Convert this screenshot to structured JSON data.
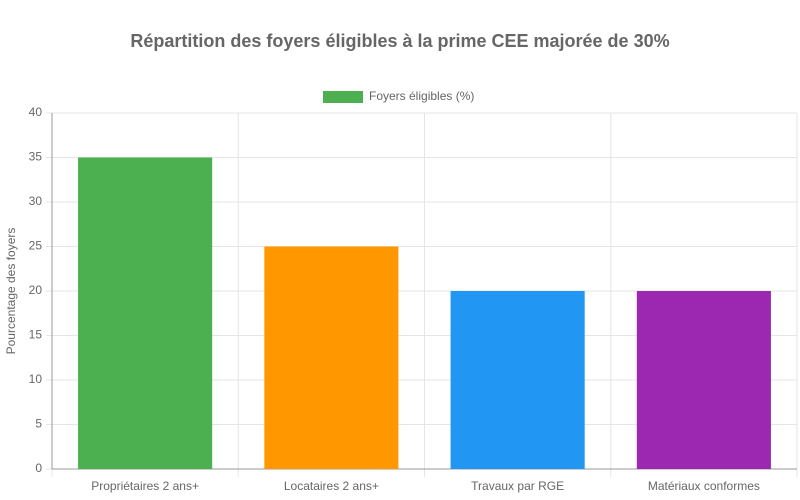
{
  "chart_data": {
    "type": "bar",
    "title": "Répartition des foyers éligibles à la prime CEE majorée de 30%",
    "y_label": "Pourcentage des foyers",
    "categories": [
      "Propriétaires 2 ans+",
      "Locataires 2 ans+",
      "Travaux par RGE",
      "Matériaux conformes"
    ],
    "series": [
      {
        "name": "Foyers éligibles (%)",
        "color": "#4caf50",
        "colors": [
          "#4caf50",
          "#ff9800",
          "#2196f3",
          "#9c27b0"
        ],
        "values": [
          35,
          25,
          20,
          20
        ]
      }
    ],
    "ylim": [
      0,
      40
    ],
    "yticks": [
      0,
      5,
      10,
      15,
      20,
      25,
      30,
      35,
      40
    ],
    "grid": true,
    "legend": "top"
  }
}
